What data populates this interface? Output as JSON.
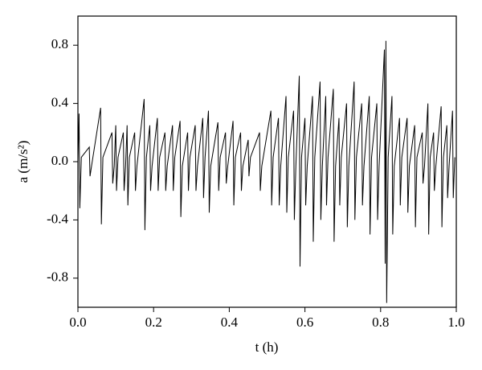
{
  "chart_data": {
    "type": "line",
    "xlabel": "t (h)",
    "ylabel": "a (m/s²)",
    "xlim": [
      0,
      1
    ],
    "ylim": [
      -1,
      1
    ],
    "xticks": [
      {
        "value": 0,
        "label": "0.0"
      },
      0.2,
      0.4,
      0.6,
      0.8,
      {
        "value": 1,
        "label": "1.0"
      }
    ],
    "yticks": [
      -0.8,
      -0.4,
      {
        "value": 0,
        "label": "0.0"
      },
      0.4,
      0.8
    ],
    "grid": false,
    "series": [
      {
        "color": "#000000",
        "x": [
          0,
          0.003,
          0.005,
          0.009,
          0.03,
          0.032,
          0.036,
          0.06,
          0.062,
          0.066,
          0.09,
          0.092,
          0.096,
          0.1,
          0.102,
          0.106,
          0.12,
          0.122,
          0.126,
          0.13,
          0.132,
          0.136,
          0.15,
          0.152,
          0.156,
          0.175,
          0.177,
          0.181,
          0.19,
          0.192,
          0.196,
          0.21,
          0.212,
          0.216,
          0.23,
          0.232,
          0.236,
          0.25,
          0.252,
          0.256,
          0.27,
          0.272,
          0.276,
          0.29,
          0.292,
          0.296,
          0.31,
          0.312,
          0.316,
          0.33,
          0.332,
          0.336,
          0.345,
          0.347,
          0.351,
          0.37,
          0.372,
          0.376,
          0.39,
          0.392,
          0.396,
          0.41,
          0.412,
          0.416,
          0.43,
          0.432,
          0.436,
          0.45,
          0.452,
          0.456,
          0.48,
          0.482,
          0.486,
          0.51,
          0.512,
          0.516,
          0.53,
          0.532,
          0.536,
          0.55,
          0.552,
          0.556,
          0.57,
          0.572,
          0.576,
          0.585,
          0.587,
          0.591,
          0.6,
          0.602,
          0.606,
          0.62,
          0.622,
          0.626,
          0.64,
          0.642,
          0.646,
          0.655,
          0.657,
          0.661,
          0.675,
          0.677,
          0.681,
          0.69,
          0.692,
          0.696,
          0.71,
          0.712,
          0.716,
          0.73,
          0.732,
          0.736,
          0.75,
          0.752,
          0.756,
          0.77,
          0.772,
          0.776,
          0.79,
          0.792,
          0.796,
          0.81,
          0.812,
          0.814,
          0.816,
          0.82,
          0.83,
          0.832,
          0.836,
          0.85,
          0.852,
          0.856,
          0.87,
          0.872,
          0.876,
          0.89,
          0.892,
          0.896,
          0.91,
          0.912,
          0.916,
          0.925,
          0.927,
          0.931,
          0.94,
          0.942,
          0.946,
          0.96,
          0.962,
          0.966,
          0.975,
          0.977,
          0.981,
          0.99,
          0.992,
          0.996
        ],
        "values": [
          0,
          0.33,
          -0.32,
          0.03,
          0.1,
          -0.1,
          -0.03,
          0.37,
          -0.43,
          0.03,
          0.2,
          -0.15,
          -0.03,
          0.25,
          -0.2,
          0.03,
          0.2,
          -0.2,
          -0.03,
          0.25,
          -0.3,
          0.03,
          0.2,
          -0.2,
          -0.03,
          0.43,
          -0.47,
          0.03,
          0.25,
          -0.2,
          -0.03,
          0.3,
          -0.2,
          0.03,
          0.2,
          -0.2,
          -0.03,
          0.25,
          -0.2,
          0.03,
          0.28,
          -0.38,
          -0.03,
          0.2,
          -0.2,
          0.03,
          0.25,
          -0.2,
          -0.03,
          0.3,
          -0.25,
          0.03,
          0.35,
          -0.35,
          -0.03,
          0.27,
          -0.2,
          0.03,
          0.2,
          -0.15,
          -0.03,
          0.28,
          -0.3,
          0.03,
          0.2,
          -0.2,
          -0.03,
          0.15,
          -0.1,
          0.03,
          0.2,
          -0.2,
          -0.03,
          0.35,
          -0.3,
          0.03,
          0.3,
          -0.3,
          -0.03,
          0.45,
          -0.35,
          0.03,
          0.35,
          -0.4,
          -0.03,
          0.59,
          -0.72,
          0.03,
          0.3,
          -0.3,
          -0.03,
          0.45,
          -0.55,
          0.03,
          0.55,
          -0.4,
          -0.03,
          0.45,
          -0.3,
          0.03,
          0.5,
          -0.55,
          -0.03,
          0.3,
          -0.3,
          0.03,
          0.4,
          -0.45,
          -0.03,
          0.55,
          -0.4,
          0.03,
          0.4,
          -0.3,
          -0.03,
          0.45,
          -0.5,
          0.03,
          0.4,
          -0.4,
          -0.03,
          0.77,
          -0.7,
          0.83,
          -0.97,
          0.03,
          0.45,
          -0.5,
          -0.03,
          0.3,
          -0.3,
          0.03,
          0.3,
          -0.35,
          -0.03,
          0.25,
          -0.45,
          0.03,
          0.2,
          -0.15,
          -0.03,
          0.4,
          -0.5,
          0.03,
          0.2,
          -0.2,
          -0.03,
          0.38,
          -0.45,
          0.03,
          0.25,
          -0.25,
          -0.03,
          0.35,
          -0.25,
          0.03
        ]
      }
    ]
  }
}
